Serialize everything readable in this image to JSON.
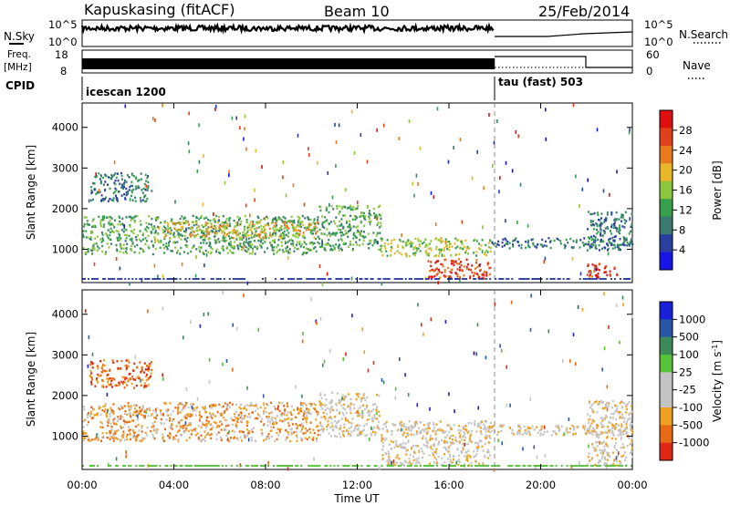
{
  "header": {
    "station": "Kapuskasing (fitACF)",
    "beam": "Beam 10",
    "date": "25/Feb/2014"
  },
  "left_panel_labels": {
    "nsky": "N.Sky",
    "freq_a": "Freq.",
    "freq_b": "[MHz]",
    "cpid": "CPID"
  },
  "right_panel_labels": {
    "nsearch": "N.Search",
    "nave": "Nave"
  },
  "nsky_ticks": {
    "top": "10^5",
    "bottom": "10^0"
  },
  "nsearch_ticks": {
    "top": "10^5",
    "bottom": "10^0"
  },
  "freq_ticks": {
    "top": "18",
    "bottom": "8"
  },
  "nave_ticks": {
    "top": "60",
    "bottom": "0"
  },
  "cpid_segments": [
    {
      "label": "icescan 1200",
      "start_hour": 0,
      "end_hour": 18
    },
    {
      "label": "tau (fast) 503",
      "start_hour": 18,
      "end_hour": 24
    }
  ],
  "colors": {
    "power": [
      "#1515e6",
      "#2a3fa0",
      "#3a7a6e",
      "#36a04e",
      "#8cc63e",
      "#e8b82a",
      "#e87a1e",
      "#e0401a",
      "#e01010"
    ],
    "velocity": [
      "#1a20d8",
      "#2a56a8",
      "#3c8a5a",
      "#56c23a",
      "#c4c4c4",
      "#c4c4c4",
      "#f0a020",
      "#e86a14",
      "#e02814"
    ]
  },
  "chart_data": [
    {
      "type": "heatmap",
      "quantity": "power",
      "xlabel": "Time UT",
      "ylabel": "Slant Range [km]",
      "colorbar_label": "Power [dB]",
      "colorbar_ticks": [
        "4",
        "8",
        "12",
        "16",
        "20",
        "24",
        "28"
      ],
      "x_ticks": [
        "00:00",
        "04:00",
        "08:00",
        "12:00",
        "16:00",
        "20:00",
        "00:00"
      ],
      "y_ticks": [
        "1000",
        "2000",
        "3000",
        "4000"
      ],
      "xlim_hours": [
        0,
        24
      ],
      "ylim_km": [
        180,
        4600
      ],
      "regions": [
        {
          "t": [
            0.0,
            10.3
          ],
          "r": [
            900,
            1850
          ],
          "power_db": 12
        },
        {
          "t": [
            3.5,
            10.3
          ],
          "r": [
            1300,
            1700
          ],
          "power_db": 20
        },
        {
          "t": [
            0.3,
            3.0
          ],
          "r": [
            2200,
            2900
          ],
          "power_db": 9
        },
        {
          "t": [
            10.3,
            13.0
          ],
          "r": [
            1000,
            2100
          ],
          "power_db": 13
        },
        {
          "t": [
            13.0,
            17.8
          ],
          "r": [
            850,
            1300
          ],
          "power_db": 14
        },
        {
          "t": [
            15.0,
            17.8
          ],
          "r": [
            300,
            800
          ],
          "power_db": 26
        },
        {
          "t": [
            17.8,
            24.0
          ],
          "r": [
            1050,
            1300
          ],
          "power_db": 7
        },
        {
          "t": [
            22.0,
            23.3
          ],
          "r": [
            300,
            700
          ],
          "power_db": 27
        },
        {
          "t": [
            22.0,
            24.0
          ],
          "r": [
            1000,
            1950
          ],
          "power_db": 9
        }
      ]
    },
    {
      "type": "heatmap",
      "quantity": "velocity",
      "xlabel": "Time UT",
      "ylabel": "Slant Range [km]",
      "colorbar_label": "Velocity [m s^-1]",
      "colorbar_ticks": [
        "1000",
        "500",
        "100",
        "25",
        "-25",
        "-100",
        "-500",
        "-1000"
      ],
      "x_ticks": [
        "00:00",
        "04:00",
        "08:00",
        "12:00",
        "16:00",
        "20:00",
        "00:00"
      ],
      "y_ticks": [
        "1000",
        "2000",
        "3000",
        "4000"
      ],
      "xlim_hours": [
        0,
        24
      ],
      "ylim_km": [
        180,
        4600
      ],
      "regions": [
        {
          "t": [
            0.0,
            10.3
          ],
          "r": [
            900,
            1850
          ],
          "velocity_ms": -60
        },
        {
          "t": [
            0.3,
            3.0
          ],
          "r": [
            2200,
            2900
          ],
          "velocity_ms": -150
        },
        {
          "t": [
            10.3,
            13.0
          ],
          "r": [
            1000,
            2100
          ],
          "velocity_ms": 0
        },
        {
          "t": [
            13.0,
            17.8
          ],
          "r": [
            300,
            1400
          ],
          "velocity_ms": 0
        },
        {
          "t": [
            17.8,
            24.0
          ],
          "r": [
            1050,
            1300
          ],
          "velocity_ms": 0
        },
        {
          "t": [
            22.0,
            24.0
          ],
          "r": [
            300,
            1900
          ],
          "velocity_ms": 0
        }
      ]
    }
  ]
}
